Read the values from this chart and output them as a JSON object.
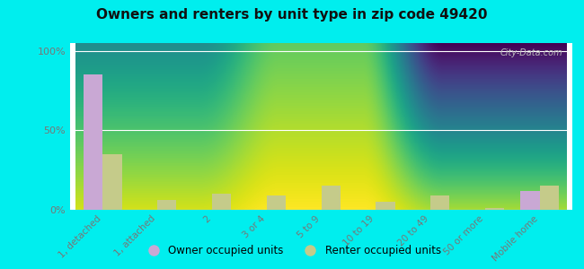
{
  "title": "Owners and renters by unit type in zip code 49420",
  "categories": [
    "1, detached",
    "1, attached",
    "2",
    "3 or 4",
    "5 to 9",
    "10 to 19",
    "20 to 49",
    "50 or more",
    "Mobile home"
  ],
  "owner_values": [
    85,
    0,
    0,
    0,
    0,
    0,
    0,
    0,
    12
  ],
  "renter_values": [
    35,
    6,
    10,
    9,
    15,
    5,
    9,
    1,
    15
  ],
  "owner_color": "#c9a8d4",
  "renter_color": "#c5cb8a",
  "background_color": "#00eeee",
  "yticks": [
    0,
    50,
    100
  ],
  "ylim": [
    0,
    105
  ],
  "bar_width": 0.35,
  "legend_owner": "Owner occupied units",
  "legend_renter": "Renter occupied units",
  "watermark": "City-Data.com",
  "tick_color": "#777777",
  "grid_color": "#dddddd",
  "plot_bg": "#e8f0d8"
}
